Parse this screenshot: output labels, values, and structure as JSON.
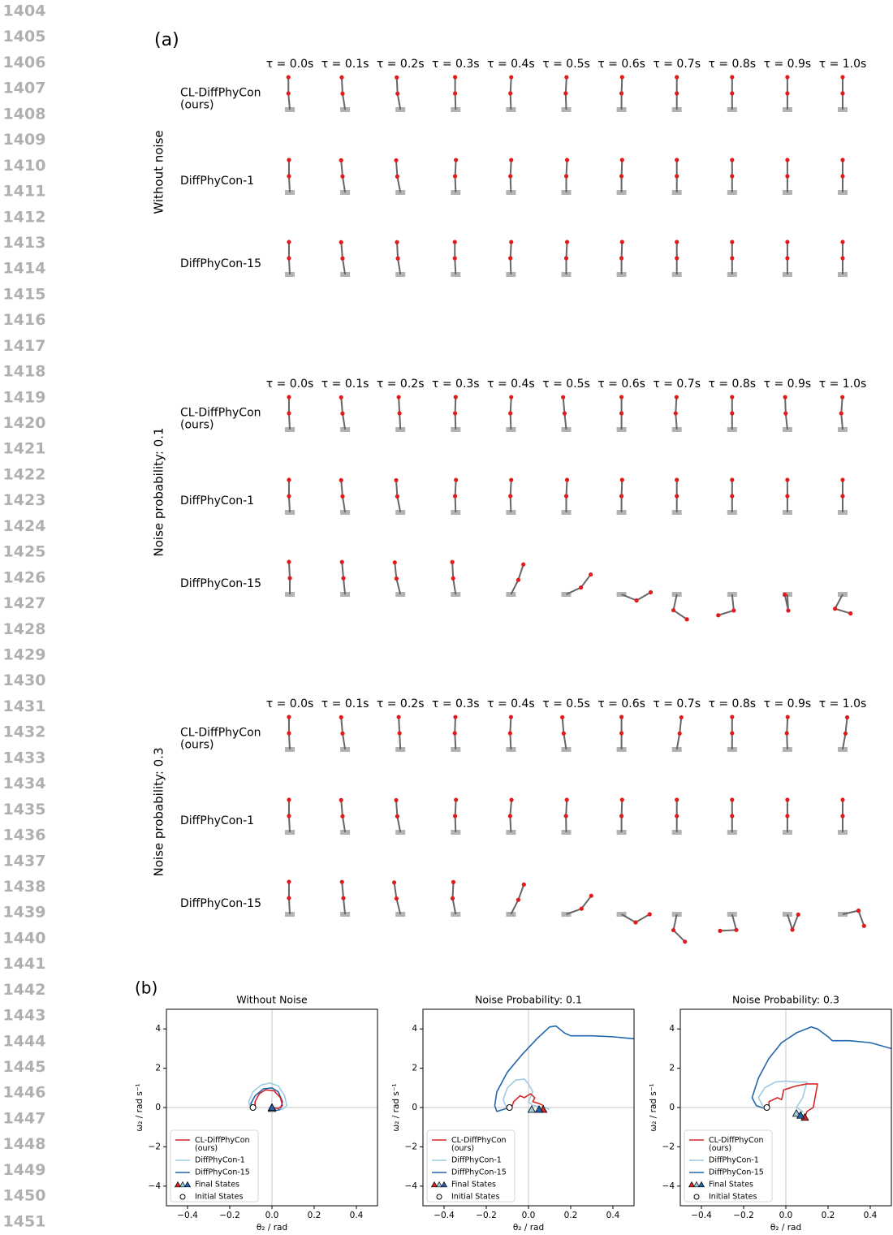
{
  "line_numbers": [
    1404,
    1405,
    1406,
    1407,
    1408,
    1409,
    1410,
    1411,
    1412,
    1413,
    1414,
    1415,
    1416,
    1417,
    1418,
    1419,
    1420,
    1421,
    1422,
    1423,
    1424,
    1425,
    1426,
    1427,
    1428,
    1429,
    1430,
    1431,
    1432,
    1433,
    1434,
    1435,
    1436,
    1437,
    1438,
    1439,
    1440,
    1441,
    1442,
    1443,
    1444,
    1445,
    1446,
    1447,
    1448,
    1449,
    1450,
    1451
  ],
  "panel_a": {
    "label": "(a)",
    "time_labels": [
      "τ = 0.0s",
      "τ = 0.1s",
      "τ = 0.2s",
      "τ = 0.3s",
      "τ = 0.4s",
      "τ = 0.5s",
      "τ = 0.6s",
      "τ = 0.7s",
      "τ = 0.8s",
      "τ = 0.9s",
      "τ = 1.0s"
    ],
    "groups": [
      {
        "label": "Without noise",
        "rows": [
          {
            "label": "CL-DiffPhyCon\n(ours)",
            "poses": [
              [
                -5,
                0
              ],
              [
                -9,
                -3
              ],
              [
                -10,
                -3
              ],
              [
                -2,
                0
              ],
              [
                -2,
                3
              ],
              [
                -2,
                3
              ],
              [
                0,
                2
              ],
              [
                0,
                0
              ],
              [
                0,
                0
              ],
              [
                0,
                0
              ],
              [
                0,
                0
              ]
            ]
          },
          {
            "label": "DiffPhyCon-1",
            "poses": [
              [
                -3,
                0
              ],
              [
                -9,
                -5
              ],
              [
                -11,
                -4
              ],
              [
                -2,
                3
              ],
              [
                -2,
                3
              ],
              [
                0,
                3
              ],
              [
                0,
                2
              ],
              [
                0,
                0
              ],
              [
                0,
                0
              ],
              [
                0,
                0
              ],
              [
                0,
                0
              ]
            ]
          },
          {
            "label": "DiffPhyCon-15",
            "poses": [
              [
                -3,
                0
              ],
              [
                -9,
                -5
              ],
              [
                -9,
                -3
              ],
              [
                -3,
                0
              ],
              [
                -2,
                3
              ],
              [
                0,
                3
              ],
              [
                0,
                2
              ],
              [
                0,
                0
              ],
              [
                0,
                0
              ],
              [
                0,
                0
              ],
              [
                0,
                0
              ]
            ]
          }
        ]
      },
      {
        "label": "Noise probability: 0.1",
        "rows": [
          {
            "label": "CL-DiffPhyCon\n(ours)",
            "poses": [
              [
                -3,
                0
              ],
              [
                -9,
                -5
              ],
              [
                -3,
                -3
              ],
              [
                -2,
                2
              ],
              [
                -2,
                3
              ],
              [
                -6,
                -5
              ],
              [
                0,
                0
              ],
              [
                -4,
                3
              ],
              [
                0,
                0
              ],
              [
                -6,
                -2
              ],
              [
                -5,
                4
              ]
            ]
          },
          {
            "label": "DiffPhyCon-1",
            "poses": [
              [
                -3,
                0
              ],
              [
                -9,
                -5
              ],
              [
                -11,
                -4
              ],
              [
                -2,
                3
              ],
              [
                -2,
                3
              ],
              [
                0,
                3
              ],
              [
                0,
                2
              ],
              [
                0,
                0
              ],
              [
                0,
                0
              ],
              [
                0,
                0
              ],
              [
                0,
                0
              ]
            ]
          },
          {
            "label": "DiffPhyCon-15",
            "poses": [
              [
                0,
                -3
              ],
              [
                -6,
                -5
              ],
              [
                -14,
                -6
              ],
              [
                -9,
                -3
              ],
              [
                27,
                18
              ],
              [
                65,
                37
              ],
              [
                112,
                60
              ],
              [
                192,
                124
              ],
              [
                174,
                253
              ],
              [
                177,
                -12
              ],
              [
                208,
                107
              ]
            ]
          }
        ]
      },
      {
        "label": "Noise probability: 0.3",
        "rows": [
          {
            "label": "CL-DiffPhyCon\n(ours)",
            "poses": [
              [
                -3,
                0
              ],
              [
                -9,
                -5
              ],
              [
                -3,
                -3
              ],
              [
                -3,
                2
              ],
              [
                -3,
                3
              ],
              [
                -9,
                -5
              ],
              [
                0,
                0
              ],
              [
                10,
                6
              ],
              [
                0,
                0
              ],
              [
                -2,
                3
              ],
              [
                10,
                6
              ]
            ]
          },
          {
            "label": "DiffPhyCon-1",
            "poses": [
              [
                -3,
                0
              ],
              [
                -9,
                -5
              ],
              [
                -11,
                -4
              ],
              [
                -2,
                3
              ],
              [
                -3,
                5
              ],
              [
                -1,
                3
              ],
              [
                0,
                2
              ],
              [
                0,
                0
              ],
              [
                0,
                0
              ],
              [
                0,
                0
              ],
              [
                0,
                0
              ]
            ]
          },
          {
            "label": "DiffPhyCon-15",
            "poses": [
              [
                -3,
                0
              ],
              [
                -6,
                -5
              ],
              [
                -14,
                -8
              ],
              [
                -11,
                3
              ],
              [
                27,
                20
              ],
              [
                70,
                37
              ],
              [
                120,
                60
              ],
              [
                192,
                135
              ],
              [
                165,
                267
              ],
              [
                162,
                21
              ],
              [
                77,
                160
              ]
            ]
          }
        ]
      }
    ]
  },
  "panel_b_label": "(b)",
  "chart_data": [
    {
      "type": "line",
      "title": "Without Noise",
      "x_label": "θ₂ / rad",
      "y_label": "ω₂ / rad s⁻¹",
      "xlim": [
        -0.5,
        0.5
      ],
      "ylim": [
        -5,
        5
      ],
      "xticks": [
        {
          "value": -0.4,
          "label": "−0.4"
        },
        {
          "value": -0.2,
          "label": "−0.2"
        },
        {
          "value": 0,
          "label": "0.0"
        },
        0.2,
        0.4
      ],
      "yticks": [
        {
          "value": -4,
          "label": "−4"
        },
        {
          "value": -2,
          "label": "−2"
        },
        0,
        2,
        4
      ],
      "zero_lines": true,
      "legend": "lower left",
      "series": [
        {
          "name": "CL-DiffPhyCon\n(ours)",
          "color": "#d62728",
          "x": [
            -0.08,
            -0.08,
            -0.06,
            -0.03,
            0.01,
            0.04,
            0.05,
            0.03,
            0.0
          ],
          "values": [
            0,
            0.3,
            0.7,
            0.9,
            0.85,
            0.5,
            0.1,
            -0.05,
            0
          ],
          "final_x": 0.0,
          "final_y": 0.0
        },
        {
          "name": "DiffPhyCon-1",
          "color": "#9ecae1",
          "x": [
            -0.1,
            -0.11,
            -0.09,
            -0.05,
            -0.01,
            0.03,
            0.06,
            0.07,
            0.05,
            0.02
          ],
          "values": [
            -0.1,
            0.3,
            0.8,
            1.15,
            1.25,
            1.1,
            0.6,
            0.1,
            -0.1,
            0
          ],
          "final_x": 0.0,
          "final_y": -0.05
        },
        {
          "name": "DiffPhyCon-15",
          "color": "#2166ac",
          "x": [
            -0.09,
            -0.1,
            -0.08,
            -0.04,
            0,
            0.03,
            0.05,
            0.04,
            0.02,
            0.0
          ],
          "values": [
            -0.1,
            0.2,
            0.6,
            0.95,
            1.0,
            0.8,
            0.3,
            -0.1,
            -0.15,
            0
          ],
          "final_x": 0.0,
          "final_y": 0.0
        }
      ],
      "initial_x": -0.09,
      "initial_y": 0,
      "final_states_label": "Final States",
      "initial_states_label": "Initial States"
    },
    {
      "type": "line",
      "title": "Noise Probability: 0.1",
      "x_label": "θ₂ / rad",
      "y_label": "ω₂ / rad s⁻¹",
      "xlim": [
        -0.5,
        0.5
      ],
      "ylim": [
        -5,
        5
      ],
      "xticks": [
        {
          "value": -0.4,
          "label": "−0.4"
        },
        {
          "value": -0.2,
          "label": "−0.2"
        },
        {
          "value": 0,
          "label": "0.0"
        },
        0.2,
        0.4
      ],
      "yticks": [
        {
          "value": -4,
          "label": "−4"
        },
        {
          "value": -2,
          "label": "−2"
        },
        0,
        2,
        4
      ],
      "zero_lines": true,
      "legend": "lower left",
      "series": [
        {
          "name": "CL-DiffPhyCon\n(ours)",
          "color": "#d62728",
          "x": [
            -0.08,
            -0.07,
            -0.04,
            -0.02,
            0.01,
            0.03,
            0.02,
            0.05,
            0.07,
            0.07
          ],
          "values": [
            0,
            0.3,
            0.6,
            0.5,
            0.7,
            0.5,
            0.3,
            0.2,
            0.1,
            0
          ],
          "final_x": 0.07,
          "final_y": -0.1
        },
        {
          "name": "DiffPhyCon-1",
          "color": "#9ecae1",
          "x": [
            -0.1,
            -0.12,
            -0.1,
            -0.06,
            -0.02,
            0.0,
            0.02,
            0.0,
            0.02,
            0.05,
            0.08,
            0.1
          ],
          "values": [
            -0.1,
            0.4,
            1.0,
            1.4,
            1.45,
            1.2,
            0.8,
            0.3,
            0.1,
            0.05,
            0,
            -0.1
          ],
          "final_x": 0.015,
          "final_y": -0.1
        },
        {
          "name": "DiffPhyCon-15",
          "color": "#2166ac",
          "x": [
            -0.09,
            -0.15,
            -0.16,
            -0.15,
            -0.1,
            -0.03,
            0.04,
            0.1,
            0.13,
            0.17,
            0.2,
            0.3,
            0.4,
            0.5
          ],
          "values": [
            0,
            -0.2,
            0.1,
            0.8,
            1.8,
            2.7,
            3.5,
            4.1,
            4.15,
            3.8,
            3.65,
            3.65,
            3.6,
            3.5
          ],
          "final_x": 0.05,
          "final_y": -0.1
        }
      ],
      "initial_x": -0.09,
      "initial_y": 0,
      "final_states_label": "Final States",
      "initial_states_label": "Initial States"
    },
    {
      "type": "line",
      "title": "Noise Probability: 0.3",
      "x_label": "θ₂ / rad",
      "y_label": "ω₂ / rad s⁻¹",
      "xlim": [
        -0.5,
        0.5
      ],
      "ylim": [
        -5,
        5
      ],
      "xticks": [
        {
          "value": -0.4,
          "label": "−0.4"
        },
        {
          "value": -0.2,
          "label": "−0.2"
        },
        {
          "value": 0,
          "label": "0.0"
        },
        0.2,
        0.4
      ],
      "yticks": [
        {
          "value": -4,
          "label": "−4"
        },
        {
          "value": -2,
          "label": "−2"
        },
        0,
        2,
        4
      ],
      "zero_lines": true,
      "legend": "lower left",
      "series": [
        {
          "name": "CL-DiffPhyCon\n(ours)",
          "color": "#d62728",
          "x": [
            -0.08,
            -0.08,
            -0.04,
            -0.02,
            -0.01,
            0.05,
            0.1,
            0.15,
            0.14,
            0.13,
            0.1,
            0.09
          ],
          "values": [
            0,
            0.3,
            0.5,
            0.4,
            0.9,
            1.1,
            1.2,
            1.2,
            0.6,
            0,
            -0.2,
            -0.5
          ],
          "final_x": 0.09,
          "final_y": -0.5
        },
        {
          "name": "DiffPhyCon-1",
          "color": "#9ecae1",
          "x": [
            -0.1,
            -0.13,
            -0.1,
            -0.05,
            0.0,
            0.05,
            0.1,
            0.08,
            0.05,
            0.08,
            0.06,
            0.05
          ],
          "values": [
            -0.1,
            0.5,
            1.0,
            1.3,
            1.35,
            1.3,
            1.3,
            0.5,
            0,
            -0.2,
            -0.3,
            -0.35
          ],
          "final_x": 0.05,
          "final_y": -0.3
        },
        {
          "name": "DiffPhyCon-15",
          "color": "#2166ac",
          "x": [
            -0.1,
            -0.14,
            -0.16,
            -0.13,
            -0.08,
            -0.02,
            0.05,
            0.12,
            0.15,
            0.2,
            0.22,
            0.3,
            0.4,
            0.5
          ],
          "values": [
            -0.05,
            0.1,
            0.5,
            1.5,
            2.5,
            3.3,
            3.8,
            4.1,
            4.0,
            3.6,
            3.4,
            3.4,
            3.3,
            3.0
          ],
          "final_x": 0.07,
          "final_y": -0.4
        }
      ],
      "initial_x": -0.09,
      "initial_y": 0,
      "final_states_label": "Final States",
      "initial_states_label": "Initial States"
    }
  ]
}
